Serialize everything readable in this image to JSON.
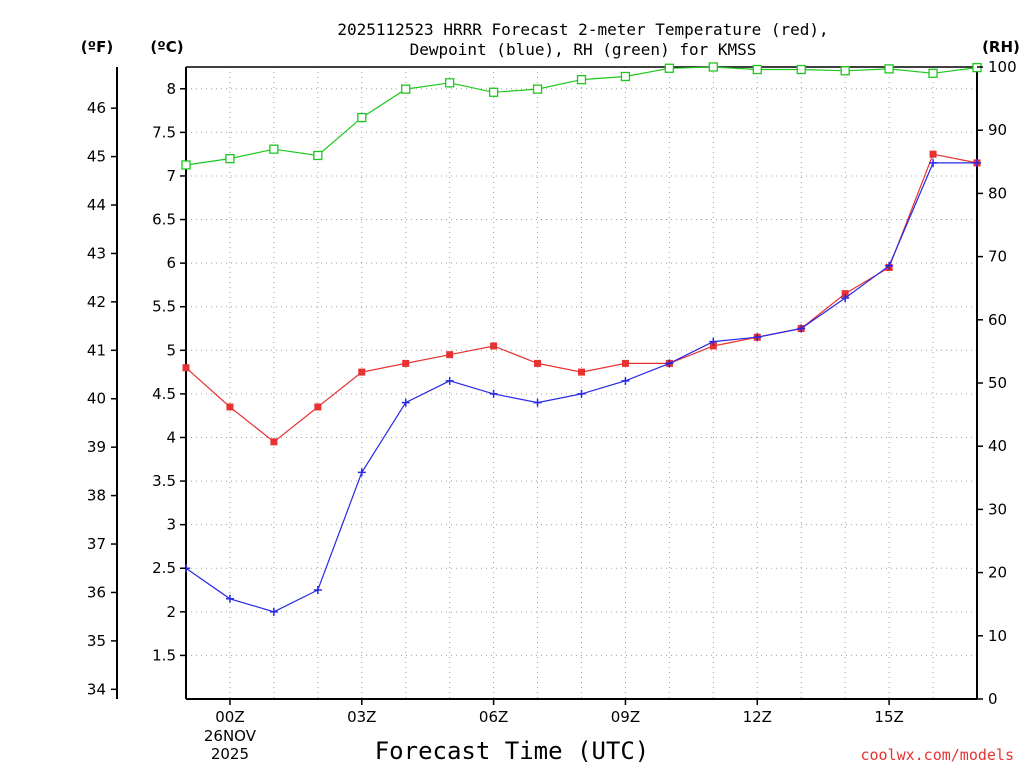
{
  "chart_data": {
    "type": "line",
    "title_lines": [
      "2025112523 HRRR Forecast 2-meter Temperature (red),",
      "Dewpoint (blue), RH (green) for KMSS"
    ],
    "xlabel": "Forecast Time (UTC)",
    "credit": "coolwx.com/models",
    "units": {
      "fahrenheit": "(ºF)",
      "celsius": "(ºC)",
      "rh": "(RH)"
    },
    "x_hours": [
      -1,
      0,
      1,
      2,
      3,
      4,
      5,
      6,
      7,
      8,
      9,
      10,
      11,
      12,
      13,
      14,
      15,
      16,
      17
    ],
    "xlim": [
      -1,
      17
    ],
    "x_ticks": [
      {
        "hour": 0,
        "label": "00Z",
        "sub": [
          "26NOV",
          "2025"
        ]
      },
      {
        "hour": 3,
        "label": "03Z",
        "sub": []
      },
      {
        "hour": 6,
        "label": "06Z",
        "sub": []
      },
      {
        "hour": 9,
        "label": "09Z",
        "sub": []
      },
      {
        "hour": 12,
        "label": "12Z",
        "sub": []
      },
      {
        "hour": 15,
        "label": "15Z",
        "sub": []
      }
    ],
    "celsius_axis": {
      "ylim": [
        1.0,
        8.25
      ],
      "ticks": [
        "1.5",
        "2",
        "2.5",
        "3",
        "3.5",
        "4",
        "4.5",
        "5",
        "5.5",
        "6",
        "6.5",
        "7",
        "7.5",
        "8"
      ]
    },
    "fahrenheit_axis": {
      "ylim": [
        33.8,
        46.85
      ],
      "ticks": [
        "34",
        "35",
        "36",
        "37",
        "38",
        "39",
        "40",
        "41",
        "42",
        "43",
        "44",
        "45",
        "46"
      ]
    },
    "rh_axis": {
      "ylim": [
        0,
        100
      ],
      "ticks": [
        "0",
        "10",
        "20",
        "30",
        "40",
        "50",
        "60",
        "70",
        "80",
        "90",
        "100"
      ]
    },
    "series": [
      {
        "name": "Temperature",
        "axis": "celsius",
        "color": "#e83232",
        "marker": "filled-square",
        "values": [
          4.8,
          4.35,
          3.95,
          4.35,
          4.75,
          4.85,
          4.95,
          5.05,
          4.85,
          4.75,
          4.85,
          4.85,
          5.05,
          5.15,
          5.25,
          5.65,
          5.95,
          7.25,
          7.15
        ]
      },
      {
        "name": "Dewpoint",
        "axis": "celsius",
        "color": "#2828e6",
        "marker": "plus",
        "values": [
          2.5,
          2.15,
          2.0,
          2.25,
          3.6,
          4.4,
          4.65,
          4.5,
          4.4,
          4.5,
          4.65,
          4.85,
          5.1,
          5.15,
          5.25,
          5.6,
          5.97,
          7.15,
          7.15
        ]
      },
      {
        "name": "RH",
        "axis": "rh",
        "color": "#1ec81e",
        "marker": "open-square",
        "values": [
          84.5,
          85.5,
          87,
          86,
          92,
          96.5,
          97.5,
          96,
          96.5,
          98,
          98.5,
          99.8,
          100,
          99.6,
          99.6,
          99.4,
          99.7,
          99,
          99.9
        ]
      }
    ]
  }
}
